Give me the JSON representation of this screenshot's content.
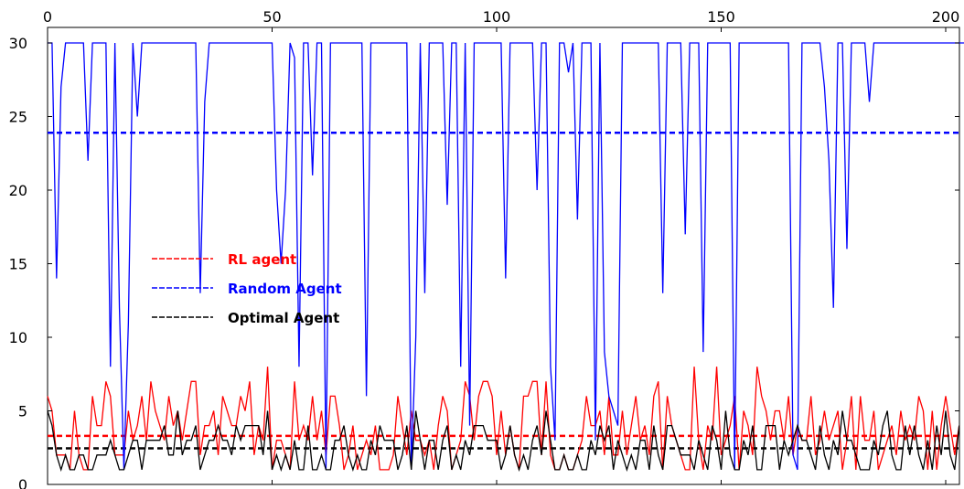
{
  "chart_data": {
    "type": "line",
    "title": "",
    "xlabel": "",
    "ylabel": "",
    "xlim": [
      0,
      202
    ],
    "ylim": [
      0,
      30
    ],
    "x_ticks": [
      0,
      50,
      100,
      150,
      200
    ],
    "y_ticks": [
      0,
      5,
      10,
      15,
      20,
      25,
      30
    ],
    "x_tick_labels": [
      "0",
      "50",
      "100",
      "150",
      "200"
    ],
    "y_tick_labels": [
      "0",
      "5",
      "10",
      "15",
      "20",
      "25",
      "30"
    ],
    "x_axis_position": "top",
    "grid": false,
    "legend_position": "left-middle",
    "series": [
      {
        "name": "RL agent",
        "color": "#ff0000",
        "values": [
          6,
          5,
          2,
          2,
          2,
          1,
          5,
          2,
          1,
          1,
          6,
          4,
          4,
          7,
          6,
          2,
          2,
          2,
          5,
          3,
          4,
          6,
          3,
          7,
          5,
          4,
          3,
          6,
          4,
          5,
          3,
          5,
          7,
          7,
          2,
          4,
          4,
          5,
          2,
          6,
          5,
          4,
          4,
          6,
          5,
          7,
          2,
          4,
          3,
          8,
          1,
          3,
          3,
          2,
          1,
          7,
          3,
          4,
          3,
          6,
          3,
          5,
          2,
          6,
          6,
          4,
          1,
          2,
          4,
          1,
          2,
          3,
          2,
          4,
          1,
          1,
          1,
          2,
          6,
          4,
          2,
          5,
          3,
          3,
          2,
          3,
          1,
          4,
          6,
          5,
          1,
          2,
          3,
          7,
          6,
          3,
          6,
          7,
          7,
          6,
          2,
          5,
          2,
          4,
          2,
          1,
          6,
          6,
          7,
          7,
          2,
          7,
          2,
          1,
          1,
          2,
          1,
          1,
          2,
          3,
          6,
          4,
          4,
          5,
          2,
          6,
          2,
          2,
          5,
          2,
          4,
          6,
          3,
          4,
          2,
          6,
          7,
          1,
          6,
          4,
          3,
          2,
          1,
          1,
          8,
          3,
          1,
          4,
          3,
          8,
          2,
          3,
          4,
          6,
          1,
          5,
          4,
          2,
          8,
          6,
          5,
          3,
          5,
          5,
          3,
          6,
          2,
          4,
          3,
          3,
          6,
          2,
          3,
          5,
          3,
          4,
          5,
          1,
          3,
          6,
          1,
          6,
          3,
          3,
          5,
          1,
          2,
          3,
          4,
          2,
          5,
          3,
          4,
          3,
          6,
          5,
          1,
          5,
          1,
          4,
          6,
          4,
          2,
          4
        ]
      },
      {
        "name": "Random Agent",
        "color": "#0000ff",
        "values": [
          30,
          30,
          14,
          27,
          30,
          30,
          30,
          30,
          30,
          22,
          30,
          30,
          30,
          30,
          8,
          30,
          12,
          1,
          11,
          30,
          25,
          30,
          30,
          30,
          30,
          30,
          30,
          30,
          30,
          30,
          30,
          30,
          30,
          30,
          13,
          26,
          30,
          30,
          30,
          30,
          30,
          30,
          30,
          30,
          30,
          30,
          30,
          30,
          30,
          30,
          30,
          20,
          15,
          20,
          30,
          29,
          8,
          30,
          30,
          21,
          30,
          30,
          1,
          30,
          30,
          30,
          30,
          30,
          30,
          30,
          30,
          6,
          30,
          30,
          30,
          30,
          30,
          30,
          30,
          30,
          30,
          1,
          10,
          30,
          13,
          30,
          30,
          30,
          30,
          19,
          30,
          30,
          8,
          30,
          4,
          30,
          30,
          30,
          30,
          30,
          30,
          30,
          14,
          30,
          30,
          30,
          30,
          30,
          30,
          20,
          30,
          30,
          8,
          3,
          30,
          30,
          28,
          30,
          18,
          30,
          30,
          30,
          3,
          30,
          9,
          6,
          5,
          4,
          30,
          30,
          30,
          30,
          30,
          30,
          30,
          30,
          30,
          13,
          30,
          30,
          30,
          30,
          17,
          30,
          30,
          30,
          9,
          30,
          30,
          30,
          30,
          30,
          30,
          1,
          30,
          30,
          30,
          30,
          30,
          30,
          30,
          30,
          30,
          30,
          30,
          30,
          2,
          1,
          30,
          30,
          30,
          30,
          30,
          27,
          22,
          12,
          30,
          30,
          16,
          30,
          30,
          30,
          30,
          26,
          30,
          30,
          30,
          30,
          30,
          30,
          30,
          30,
          30,
          30,
          30,
          30,
          30,
          30,
          30,
          30,
          30,
          30,
          30,
          30,
          30,
          30,
          30,
          30,
          30,
          30,
          30,
          30
        ]
      },
      {
        "name": "Optimal Agent",
        "color": "#000000",
        "values": [
          5,
          4,
          2,
          1,
          2,
          1,
          1,
          2,
          2,
          1,
          1,
          2,
          2,
          2,
          3,
          2,
          1,
          1,
          2,
          3,
          3,
          1,
          3,
          3,
          3,
          3,
          4,
          2,
          2,
          5,
          2,
          3,
          3,
          4,
          1,
          2,
          3,
          3,
          4,
          3,
          3,
          2,
          4,
          3,
          4,
          4,
          4,
          4,
          2,
          5,
          1,
          2,
          1,
          2,
          1,
          3,
          1,
          1,
          4,
          1,
          1,
          2,
          1,
          1,
          3,
          3,
          4,
          2,
          1,
          2,
          1,
          1,
          3,
          2,
          4,
          3,
          3,
          3,
          1,
          2,
          4,
          1,
          5,
          3,
          1,
          3,
          3,
          1,
          3,
          4,
          1,
          2,
          1,
          3,
          2,
          4,
          4,
          4,
          3,
          3,
          3,
          1,
          2,
          4,
          2,
          1,
          2,
          1,
          3,
          4,
          2,
          5,
          3,
          1,
          1,
          2,
          1,
          1,
          2,
          1,
          1,
          3,
          2,
          4,
          3,
          4,
          1,
          3,
          2,
          1,
          2,
          1,
          3,
          3,
          1,
          4,
          2,
          1,
          4,
          4,
          3,
          2,
          2,
          2,
          1,
          3,
          2,
          1,
          4,
          3,
          1,
          5,
          2,
          1,
          1,
          3,
          2,
          4,
          1,
          1,
          4,
          4,
          4,
          1,
          3,
          2,
          3,
          4,
          3,
          3,
          2,
          1,
          4,
          2,
          1,
          3,
          2,
          5,
          3,
          3,
          2,
          1,
          1,
          1,
          3,
          2,
          4,
          5,
          2,
          1,
          1,
          4,
          2,
          4,
          2,
          1,
          3,
          1,
          4,
          2,
          5,
          2,
          1,
          4
        ]
      }
    ],
    "reference_lines": [
      {
        "series": "RL agent",
        "y": 3.3,
        "color": "#ff0000",
        "style": "dashed"
      },
      {
        "series": "Random Agent",
        "y": 23.9,
        "color": "#0000ff",
        "style": "dashed"
      },
      {
        "series": "Optimal Agent",
        "y": 2.45,
        "color": "#000000",
        "style": "dashed"
      }
    ]
  },
  "legend": {
    "items": [
      {
        "label": "RL agent",
        "color": "#ff0000"
      },
      {
        "label": "Random Agent",
        "color": "#0000ff"
      },
      {
        "label": "Optimal Agent",
        "color": "#000000"
      }
    ]
  }
}
